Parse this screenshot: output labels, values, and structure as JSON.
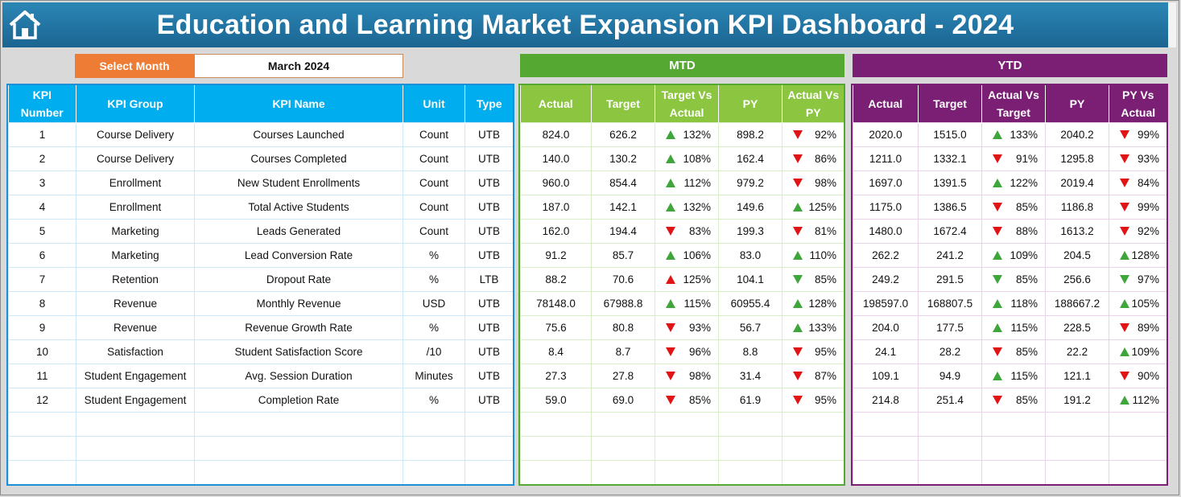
{
  "title": "Education and Learning Market Expansion KPI Dashboard - 2024",
  "colors": {
    "header": "#1f6f9f",
    "select": "#ef7c35",
    "mtd": "#55a832",
    "ytd": "#7b1f74",
    "kpi_header": "#00aeef",
    "up": "#3ea63a",
    "down": "#e01414"
  },
  "icons": {
    "home": "home-icon"
  },
  "select_month": {
    "label": "Select Month",
    "value": "March 2024"
  },
  "mtd": {
    "title": "MTD",
    "headers": [
      "Actual",
      "Target",
      "Target Vs Actual",
      "PY",
      "Actual Vs PY"
    ]
  },
  "ytd": {
    "title": "YTD",
    "headers": [
      "Actual",
      "Target",
      "Actual Vs Target",
      "PY",
      "PY Vs Actual"
    ]
  },
  "kpi_headers": [
    "KPI Number",
    "KPI Group",
    "KPI Name",
    "Unit",
    "Type"
  ],
  "rows": [
    {
      "num": "1",
      "group": "Course Delivery",
      "name": "Courses Launched",
      "unit": "Count",
      "type": "UTB",
      "mtd": {
        "actual": "824.0",
        "target": "626.2",
        "tva": "132%",
        "tva_dir": "up",
        "py": "898.2",
        "avp": "92%",
        "avp_dir": "down"
      },
      "ytd": {
        "actual": "2020.0",
        "target": "1515.0",
        "avt": "133%",
        "avt_dir": "up",
        "py": "2040.2",
        "pva": "99%",
        "pva_dir": "down"
      }
    },
    {
      "num": "2",
      "group": "Course Delivery",
      "name": "Courses Completed",
      "unit": "Count",
      "type": "UTB",
      "mtd": {
        "actual": "140.0",
        "target": "130.2",
        "tva": "108%",
        "tva_dir": "up",
        "py": "162.4",
        "avp": "86%",
        "avp_dir": "down"
      },
      "ytd": {
        "actual": "1211.0",
        "target": "1332.1",
        "avt": "91%",
        "avt_dir": "down",
        "py": "1295.8",
        "pva": "93%",
        "pva_dir": "down"
      }
    },
    {
      "num": "3",
      "group": "Enrollment",
      "name": "New Student Enrollments",
      "unit": "Count",
      "type": "UTB",
      "mtd": {
        "actual": "960.0",
        "target": "854.4",
        "tva": "112%",
        "tva_dir": "up",
        "py": "979.2",
        "avp": "98%",
        "avp_dir": "down"
      },
      "ytd": {
        "actual": "1697.0",
        "target": "1391.5",
        "avt": "122%",
        "avt_dir": "up",
        "py": "2019.4",
        "pva": "84%",
        "pva_dir": "down"
      }
    },
    {
      "num": "4",
      "group": "Enrollment",
      "name": "Total Active Students",
      "unit": "Count",
      "type": "UTB",
      "mtd": {
        "actual": "187.0",
        "target": "142.1",
        "tva": "132%",
        "tva_dir": "up",
        "py": "149.6",
        "avp": "125%",
        "avp_dir": "up"
      },
      "ytd": {
        "actual": "1175.0",
        "target": "1386.5",
        "avt": "85%",
        "avt_dir": "down",
        "py": "1186.8",
        "pva": "99%",
        "pva_dir": "down"
      }
    },
    {
      "num": "5",
      "group": "Marketing",
      "name": "Leads Generated",
      "unit": "Count",
      "type": "UTB",
      "mtd": {
        "actual": "162.0",
        "target": "194.4",
        "tva": "83%",
        "tva_dir": "down",
        "py": "199.3",
        "avp": "81%",
        "avp_dir": "down"
      },
      "ytd": {
        "actual": "1480.0",
        "target": "1672.4",
        "avt": "88%",
        "avt_dir": "down",
        "py": "1613.2",
        "pva": "92%",
        "pva_dir": "down"
      }
    },
    {
      "num": "6",
      "group": "Marketing",
      "name": "Lead Conversion Rate",
      "unit": "%",
      "type": "UTB",
      "mtd": {
        "actual": "91.2",
        "target": "85.7",
        "tva": "106%",
        "tva_dir": "up",
        "py": "83.0",
        "avp": "110%",
        "avp_dir": "up"
      },
      "ytd": {
        "actual": "262.2",
        "target": "241.2",
        "avt": "109%",
        "avt_dir": "up",
        "py": "204.5",
        "pva": "128%",
        "pva_dir": "up"
      }
    },
    {
      "num": "7",
      "group": "Retention",
      "name": "Dropout Rate",
      "unit": "%",
      "type": "LTB",
      "mtd": {
        "actual": "88.2",
        "target": "70.6",
        "tva": "125%",
        "tva_dir": "up-red",
        "py": "104.1",
        "avp": "85%",
        "avp_dir": "down-green"
      },
      "ytd": {
        "actual": "249.2",
        "target": "291.5",
        "avt": "85%",
        "avt_dir": "down-green",
        "py": "256.6",
        "pva": "97%",
        "pva_dir": "down-green"
      }
    },
    {
      "num": "8",
      "group": "Revenue",
      "name": "Monthly Revenue",
      "unit": "USD",
      "type": "UTB",
      "mtd": {
        "actual": "78148.0",
        "target": "67988.8",
        "tva": "115%",
        "tva_dir": "up",
        "py": "60955.4",
        "avp": "128%",
        "avp_dir": "up"
      },
      "ytd": {
        "actual": "198597.0",
        "target": "168807.5",
        "avt": "118%",
        "avt_dir": "up",
        "py": "188667.2",
        "pva": "105%",
        "pva_dir": "up"
      }
    },
    {
      "num": "9",
      "group": "Revenue",
      "name": "Revenue Growth Rate",
      "unit": "%",
      "type": "UTB",
      "mtd": {
        "actual": "75.6",
        "target": "80.8",
        "tva": "93%",
        "tva_dir": "down",
        "py": "56.7",
        "avp": "133%",
        "avp_dir": "up"
      },
      "ytd": {
        "actual": "204.0",
        "target": "177.5",
        "avt": "115%",
        "avt_dir": "up",
        "py": "228.5",
        "pva": "89%",
        "pva_dir": "down"
      }
    },
    {
      "num": "10",
      "group": "Satisfaction",
      "name": "Student Satisfaction Score",
      "unit": "/10",
      "type": "UTB",
      "mtd": {
        "actual": "8.4",
        "target": "8.7",
        "tva": "96%",
        "tva_dir": "down",
        "py": "8.8",
        "avp": "95%",
        "avp_dir": "down"
      },
      "ytd": {
        "actual": "24.1",
        "target": "28.2",
        "avt": "85%",
        "avt_dir": "down",
        "py": "22.2",
        "pva": "109%",
        "pva_dir": "up"
      }
    },
    {
      "num": "11",
      "group": "Student Engagement",
      "name": "Avg. Session Duration",
      "unit": "Minutes",
      "type": "UTB",
      "mtd": {
        "actual": "27.3",
        "target": "27.8",
        "tva": "98%",
        "tva_dir": "down",
        "py": "31.4",
        "avp": "87%",
        "avp_dir": "down"
      },
      "ytd": {
        "actual": "109.1",
        "target": "94.9",
        "avt": "115%",
        "avt_dir": "up",
        "py": "121.1",
        "pva": "90%",
        "pva_dir": "down"
      }
    },
    {
      "num": "12",
      "group": "Student Engagement",
      "name": "Completion Rate",
      "unit": "%",
      "type": "UTB",
      "mtd": {
        "actual": "59.0",
        "target": "69.0",
        "tva": "85%",
        "tva_dir": "down",
        "py": "61.9",
        "avp": "95%",
        "avp_dir": "down"
      },
      "ytd": {
        "actual": "214.8",
        "target": "251.4",
        "avt": "85%",
        "avt_dir": "down",
        "py": "191.2",
        "pva": "112%",
        "pva_dir": "up"
      }
    }
  ]
}
